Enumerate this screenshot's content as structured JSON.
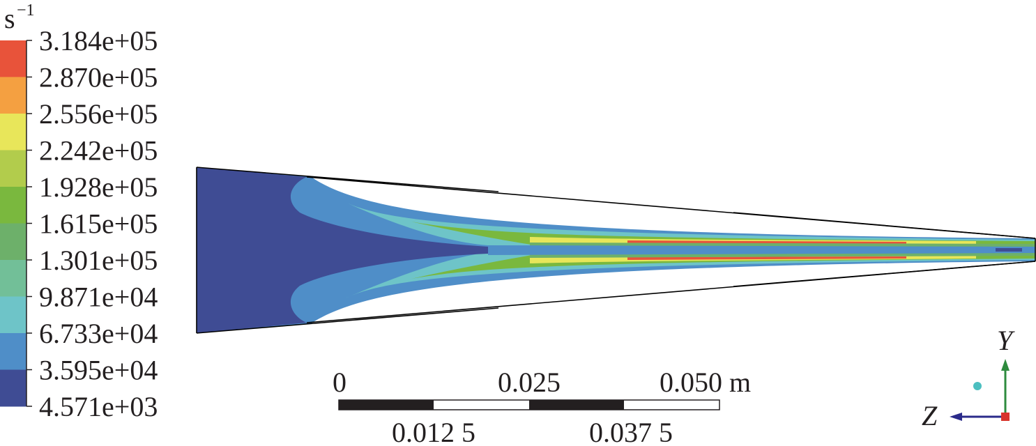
{
  "legend": {
    "unit": "s",
    "unit_exponent": "−1",
    "labels": [
      "3.184e+05",
      "2.870e+05",
      "2.556e+05",
      "2.242e+05",
      "1.928e+05",
      "1.615e+05",
      "1.301e+05",
      "9.871e+04",
      "6.733e+04",
      "3.595e+04",
      "4.571e+03"
    ],
    "colors": [
      "#e8533a",
      "#f4a041",
      "#e8e65a",
      "#b2cc4c",
      "#7ab83e",
      "#6db06a",
      "#72bf98",
      "#6ec4c8",
      "#4f8ec8",
      "#3f4c94"
    ]
  },
  "scale_bar": {
    "top_labels": [
      "0",
      "0.025",
      "0.050 m"
    ],
    "bottom_labels": [
      "0.012 5",
      "0.037 5"
    ]
  },
  "axes": {
    "y": "Y",
    "z": "Z"
  }
}
